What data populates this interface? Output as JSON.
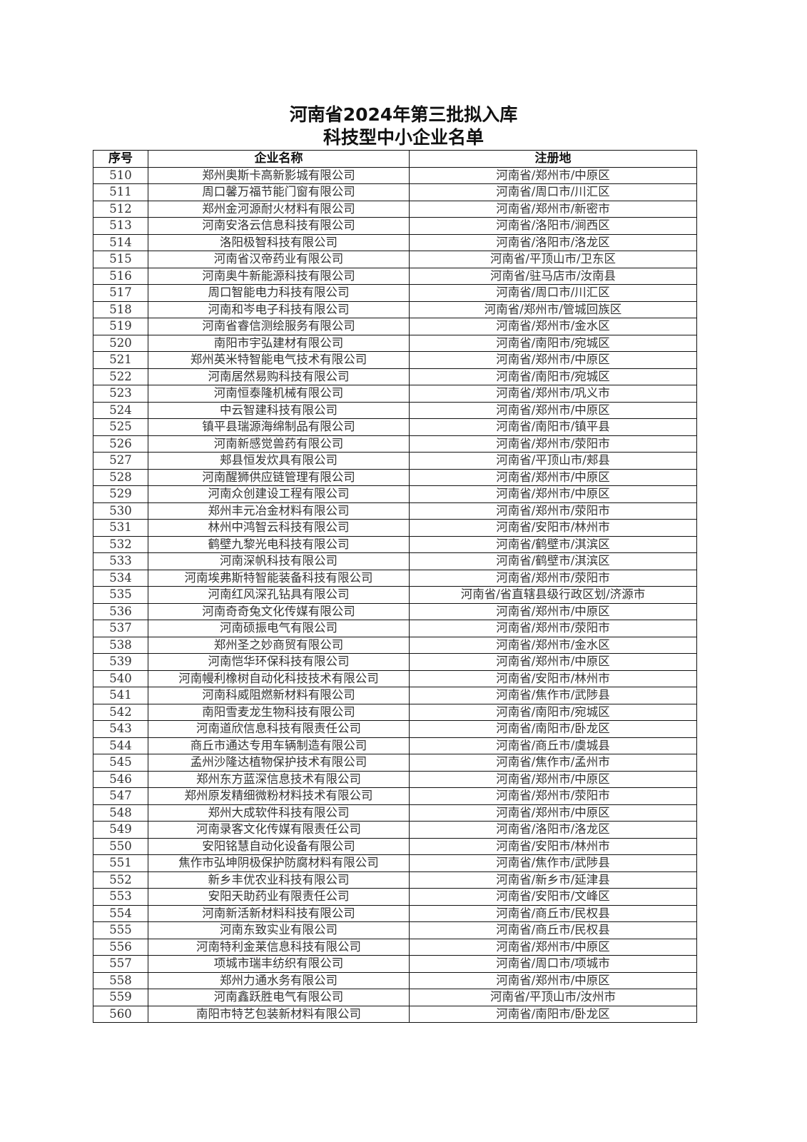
{
  "title": {
    "line1": "河南省2024年第三批拟入库",
    "line2": "科技型中小企业名单"
  },
  "table": {
    "headers": [
      "序号",
      "企业名称",
      "注册地"
    ],
    "rows": [
      [
        "510",
        "郑州奥斯卡高新影城有限公司",
        "河南省/郑州市/中原区"
      ],
      [
        "511",
        "周口馨万福节能门窗有限公司",
        "河南省/周口市/川汇区"
      ],
      [
        "512",
        "郑州金河源耐火材料有限公司",
        "河南省/郑州市/新密市"
      ],
      [
        "513",
        "河南安洛云信息科技有限公司",
        "河南省/洛阳市/涧西区"
      ],
      [
        "514",
        "洛阳极智科技有限公司",
        "河南省/洛阳市/洛龙区"
      ],
      [
        "515",
        "河南省汉帝药业有限公司",
        "河南省/平顶山市/卫东区"
      ],
      [
        "516",
        "河南奥牛新能源科技有限公司",
        "河南省/驻马店市/汝南县"
      ],
      [
        "517",
        "周口智能电力科技有限公司",
        "河南省/周口市/川汇区"
      ],
      [
        "518",
        "河南和岑电子科技有限公司",
        "河南省/郑州市/管城回族区"
      ],
      [
        "519",
        "河南省睿信测绘服务有限公司",
        "河南省/郑州市/金水区"
      ],
      [
        "520",
        "南阳市宇弘建材有限公司",
        "河南省/南阳市/宛城区"
      ],
      [
        "521",
        "郑州英米特智能电气技术有限公司",
        "河南省/郑州市/中原区"
      ],
      [
        "522",
        "河南居然易购科技有限公司",
        "河南省/南阳市/宛城区"
      ],
      [
        "523",
        "河南恒泰隆机械有限公司",
        "河南省/郑州市/巩义市"
      ],
      [
        "524",
        "中云智建科技有限公司",
        "河南省/郑州市/中原区"
      ],
      [
        "525",
        "镇平县瑞源海绵制品有限公司",
        "河南省/南阳市/镇平县"
      ],
      [
        "526",
        "河南新感觉兽药有限公司",
        "河南省/郑州市/荥阳市"
      ],
      [
        "527",
        "郏县恒发炊具有限公司",
        "河南省/平顶山市/郏县"
      ],
      [
        "528",
        "河南醒狮供应链管理有限公司",
        "河南省/郑州市/中原区"
      ],
      [
        "529",
        "河南众创建设工程有限公司",
        "河南省/郑州市/中原区"
      ],
      [
        "530",
        "郑州丰元冶金材料有限公司",
        "河南省/郑州市/荥阳市"
      ],
      [
        "531",
        "林州中鸿智云科技有限公司",
        "河南省/安阳市/林州市"
      ],
      [
        "532",
        "鹤壁九黎光电科技有限公司",
        "河南省/鹤壁市/淇滨区"
      ],
      [
        "533",
        "河南深帆科技有限公司",
        "河南省/鹤壁市/淇滨区"
      ],
      [
        "534",
        "河南埃弗斯特智能装备科技有限公司",
        "河南省/郑州市/荥阳市"
      ],
      [
        "535",
        "河南红风深孔钻具有限公司",
        "河南省/省直辖县级行政区划/济源市"
      ],
      [
        "536",
        "河南奇奇兔文化传媒有限公司",
        "河南省/郑州市/中原区"
      ],
      [
        "537",
        "河南硕振电气有限公司",
        "河南省/郑州市/荥阳市"
      ],
      [
        "538",
        "郑州圣之妙商贸有限公司",
        "河南省/郑州市/金水区"
      ],
      [
        "539",
        "河南恺华环保科技有限公司",
        "河南省/郑州市/中原区"
      ],
      [
        "540",
        "河南幔利橡树自动化科技技术有限公司",
        "河南省/安阳市/林州市"
      ],
      [
        "541",
        "河南科威阻燃新材料有限公司",
        "河南省/焦作市/武陟县"
      ],
      [
        "542",
        "南阳雪麦龙生物科技有限公司",
        "河南省/南阳市/宛城区"
      ],
      [
        "543",
        "河南道欣信息科技有限责任公司",
        "河南省/南阳市/卧龙区"
      ],
      [
        "544",
        "商丘市通达专用车辆制造有限公司",
        "河南省/商丘市/虞城县"
      ],
      [
        "545",
        "孟州沙隆达植物保护技术有限公司",
        "河南省/焦作市/孟州市"
      ],
      [
        "546",
        "郑州东方蓝深信息技术有限公司",
        "河南省/郑州市/中原区"
      ],
      [
        "547",
        "郑州原发精细微粉材料技术有限公司",
        "河南省/郑州市/荥阳市"
      ],
      [
        "548",
        "郑州大成软件科技有限公司",
        "河南省/郑州市/中原区"
      ],
      [
        "549",
        "河南录客文化传媒有限责任公司",
        "河南省/洛阳市/洛龙区"
      ],
      [
        "550",
        "安阳铭慧自动化设备有限公司",
        "河南省/安阳市/林州市"
      ],
      [
        "551",
        "焦作市弘坤阴极保护防腐材料有限公司",
        "河南省/焦作市/武陟县"
      ],
      [
        "552",
        "新乡丰优农业科技有限公司",
        "河南省/新乡市/延津县"
      ],
      [
        "553",
        "安阳天助药业有限责任公司",
        "河南省/安阳市/文峰区"
      ],
      [
        "554",
        "河南新活新材料科技有限公司",
        "河南省/商丘市/民权县"
      ],
      [
        "555",
        "河南东致实业有限公司",
        "河南省/商丘市/民权县"
      ],
      [
        "556",
        "河南特利金莱信息科技有限公司",
        "河南省/郑州市/中原区"
      ],
      [
        "557",
        "项城市瑞丰纺织有限公司",
        "河南省/周口市/项城市"
      ],
      [
        "558",
        "郑州力通水务有限公司",
        "河南省/郑州市/中原区"
      ],
      [
        "559",
        "河南鑫跃胜电气有限公司",
        "河南省/平顶山市/汝州市"
      ],
      [
        "560",
        "南阳市特艺包装新材料有限公司",
        "河南省/南阳市/卧龙区"
      ]
    ]
  }
}
